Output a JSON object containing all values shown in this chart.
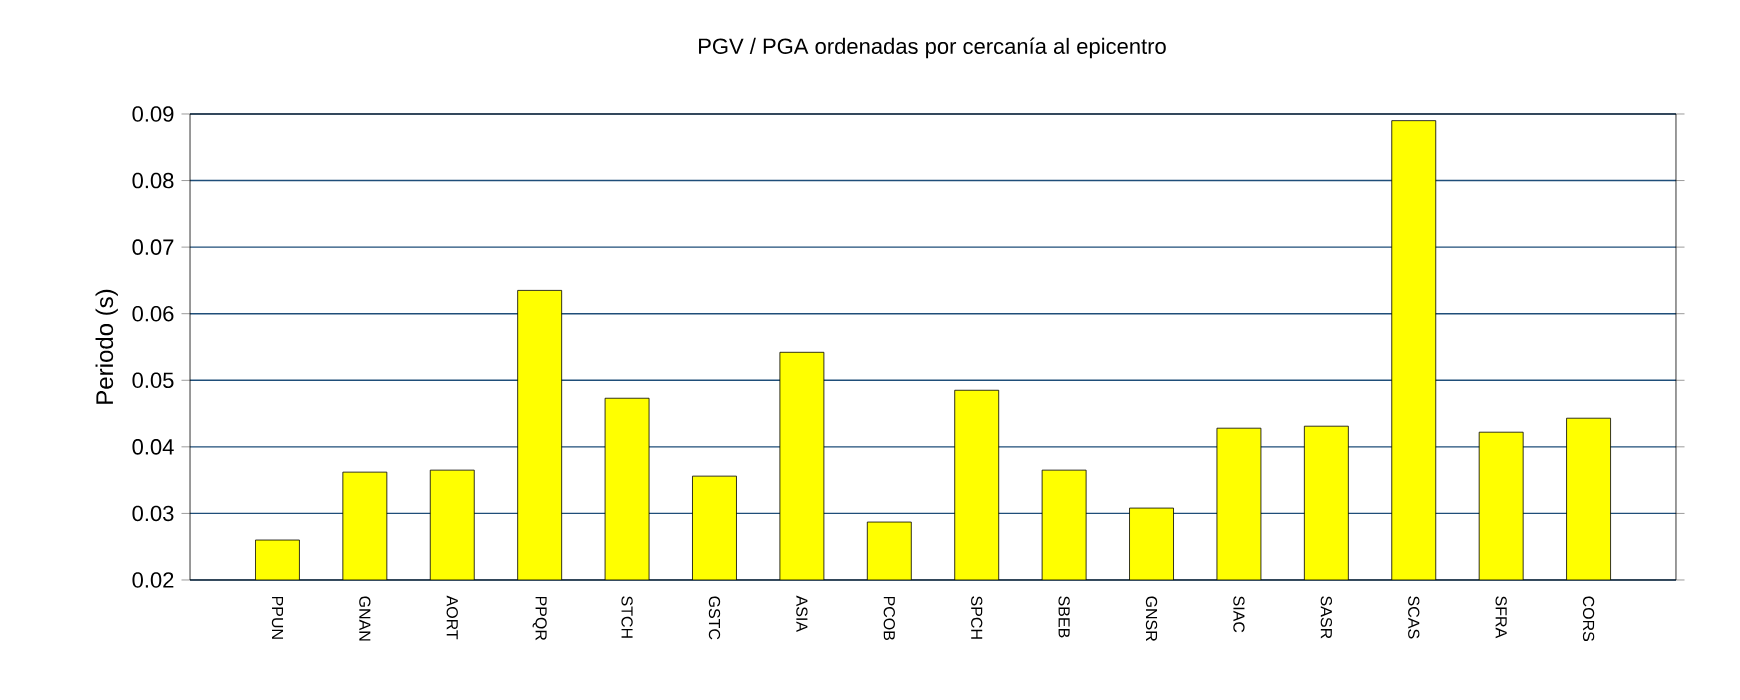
{
  "chart_data": {
    "type": "bar",
    "title": "PGV / PGA ordenadas por cercanía al epicentro",
    "ylabel": "Periodo (s)",
    "categories": [
      "PPUN",
      "GNAN",
      "AORT",
      "PPQR",
      "STCH",
      "GSTC",
      "ASIA",
      "PCOB",
      "SPCH",
      "SBEB",
      "GNSR",
      "SIAC",
      "SASR",
      "SCAS",
      "SFRA",
      "CORS"
    ],
    "values": [
      0.026,
      0.0362,
      0.0365,
      0.0635,
      0.0473,
      0.0356,
      0.0542,
      0.0287,
      0.0485,
      0.0365,
      0.0308,
      0.0428,
      0.0431,
      0.089,
      0.0422,
      0.0443
    ],
    "color": "#ffff00",
    "ylim": [
      0.02,
      0.09
    ],
    "yticks": [
      0.02,
      0.03,
      0.04,
      0.05,
      0.06,
      0.07,
      0.08,
      0.09
    ],
    "grid": "y"
  }
}
